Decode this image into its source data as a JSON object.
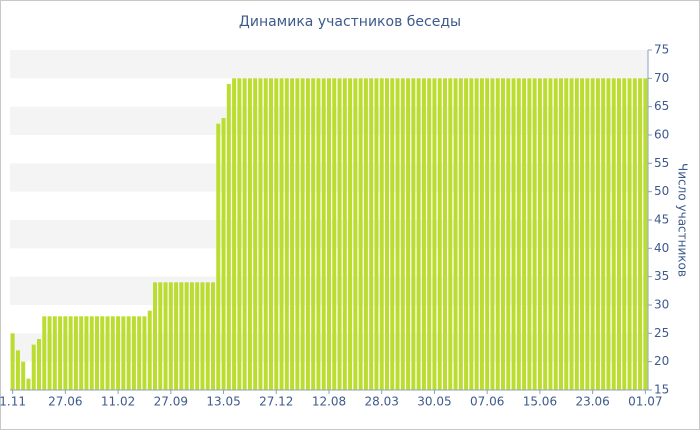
{
  "chart_data": {
    "type": "bar",
    "title": "Динамика участников беседы",
    "y_label": "Число участников",
    "categories": [
      "1.11",
      null,
      null,
      null,
      null,
      null,
      null,
      null,
      null,
      null,
      "27.06",
      null,
      null,
      null,
      null,
      null,
      null,
      null,
      null,
      null,
      "11.02",
      null,
      null,
      null,
      null,
      null,
      null,
      null,
      null,
      null,
      "27.09",
      null,
      null,
      null,
      null,
      null,
      null,
      null,
      null,
      null,
      "13.05",
      null,
      null,
      null,
      null,
      null,
      null,
      null,
      null,
      null,
      "27.12",
      null,
      null,
      null,
      null,
      null,
      null,
      null,
      null,
      null,
      "12.08",
      null,
      null,
      null,
      null,
      null,
      null,
      null,
      null,
      null,
      "28.03",
      null,
      null,
      null,
      null,
      null,
      null,
      null,
      null,
      null,
      "30.05",
      null,
      null,
      null,
      null,
      null,
      null,
      null,
      null,
      null,
      "07.06",
      null,
      null,
      null,
      null,
      null,
      null,
      null,
      null,
      null,
      "15.06",
      null,
      null,
      null,
      null,
      null,
      null,
      null,
      null,
      null,
      "23.06",
      null,
      null,
      null,
      null,
      null,
      null,
      null,
      null,
      null,
      "01.07"
    ],
    "values": [
      25,
      22,
      20,
      17,
      23,
      24,
      28,
      28,
      28,
      28,
      28,
      28,
      28,
      28,
      28,
      28,
      28,
      28,
      28,
      28,
      28,
      28,
      28,
      28,
      28,
      28,
      29,
      34,
      34,
      34,
      34,
      34,
      34,
      34,
      34,
      34,
      34,
      34,
      34,
      62,
      63,
      69,
      70,
      70,
      70,
      70,
      70,
      70,
      70,
      70,
      70,
      70,
      70,
      70,
      70,
      70,
      70,
      70,
      70,
      70,
      70,
      70,
      70,
      70,
      70,
      70,
      70,
      70,
      70,
      70,
      70,
      70,
      70,
      70,
      70,
      70,
      70,
      70,
      70,
      70,
      70,
      70,
      70,
      70,
      70,
      70,
      70,
      70,
      70,
      70,
      70,
      70,
      70,
      70,
      70,
      70,
      70,
      70,
      70,
      70,
      70,
      70,
      70,
      70,
      70,
      70,
      70,
      70,
      70,
      70,
      70,
      70,
      70,
      70,
      70,
      70,
      70,
      70,
      70,
      70,
      70
    ],
    "color": "#badd2f",
    "ylim": [
      15,
      75
    ],
    "yticks": [
      15,
      20,
      25,
      30,
      35,
      40,
      45,
      50,
      55,
      60,
      65,
      70,
      75
    ],
    "grid": true
  }
}
